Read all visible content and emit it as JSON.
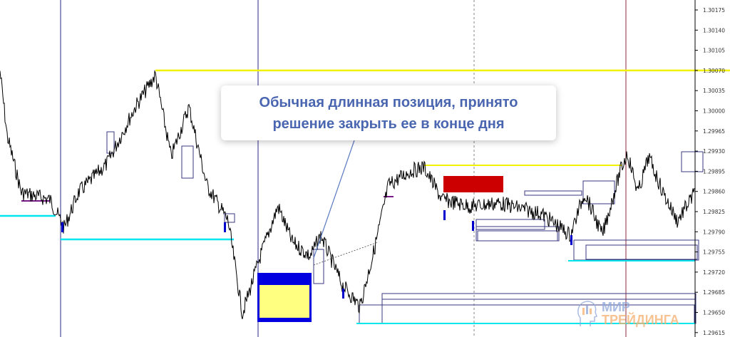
{
  "callout": {
    "line1": "Обычная длинная позиция, принято",
    "line2": "решение закрыть ее в конце дня"
  },
  "logo": {
    "line1": "МИР",
    "line2": "ТРЕЙДИНГА"
  },
  "colors": {
    "price": "#000000",
    "support": "#00e5ee",
    "resistance": "#f2f200",
    "bar_down": "#0000cc",
    "zone_red": "#cc0000",
    "zone_yellow": "#ffff80",
    "zone_blue": "#0000e0",
    "vline_navy": "#2a2a8a",
    "vline_red": "#8b2a3a",
    "vline_gray": "#888888"
  },
  "chart_data": {
    "type": "line",
    "price_axis_ticks": [
      "1.30175",
      "1.30140",
      "1.30105",
      "1.30070",
      "1.30035",
      "1.30000",
      "1.29965",
      "1.29930",
      "1.29895",
      "1.29860",
      "1.29825",
      "1.29790",
      "1.29755",
      "1.29720",
      "1.29685",
      "1.29650",
      "1.29615"
    ],
    "ylim": [
      1.29615,
      1.30175
    ],
    "x": [
      0,
      10,
      30,
      70,
      90,
      110,
      150,
      190,
      218,
      240,
      265,
      290,
      320,
      340,
      365,
      390,
      410,
      435,
      450,
      480,
      505,
      525,
      545,
      575,
      595,
      620,
      660,
      700,
      760,
      800,
      820,
      845,
      870,
      880,
      895,
      910,
      930,
      950,
      975
    ],
    "y": [
      1.30069,
      1.29957,
      1.29858,
      1.29846,
      1.29797,
      1.29858,
      1.29908,
      1.30007,
      1.30062,
      1.2992,
      1.30007,
      1.29871,
      1.29809,
      1.29648,
      1.29747,
      1.29834,
      1.29772,
      1.29747,
      1.29784,
      1.29698,
      1.2966,
      1.29759,
      1.29871,
      1.29895,
      1.29902,
      1.29846,
      1.29834,
      1.2984,
      1.29821,
      1.29784,
      1.29858,
      1.29784,
      1.29895,
      1.29926,
      1.29858,
      1.2992,
      1.29858,
      1.29809,
      1.29858
    ],
    "levels": [
      {
        "price": 1.3007,
        "kind": "resistance"
      },
      {
        "price": 1.2991,
        "kind": "resistance"
      },
      {
        "price": 1.29815,
        "kind": "support"
      },
      {
        "price": 1.29785,
        "kind": "support"
      },
      {
        "price": 1.29745,
        "kind": "support"
      },
      {
        "price": 1.2964,
        "kind": "support"
      }
    ]
  }
}
